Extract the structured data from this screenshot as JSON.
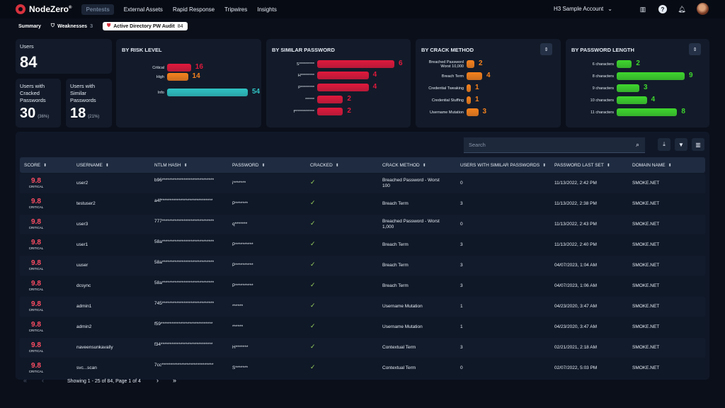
{
  "app": {
    "logo": "NodeZero",
    "logo_mark": "®",
    "nav": [
      {
        "label": "Pentests",
        "active": true
      },
      {
        "label": "External Assets"
      },
      {
        "label": "Rapid Response"
      },
      {
        "label": "Tripwires"
      },
      {
        "label": "Insights"
      }
    ],
    "account": "H3 Sample Account",
    "icons": [
      "map-icon",
      "help-icon",
      "bell-icon"
    ]
  },
  "subtabs": [
    {
      "label": "Summary",
      "count": "",
      "icon": ""
    },
    {
      "label": "Weaknesses",
      "count": "3",
      "icon": "shield-icon"
    },
    {
      "label": "Active Directory PW Audit",
      "count": "84",
      "icon": "ad-icon",
      "active": true
    }
  ],
  "stats": {
    "users": {
      "label": "Users",
      "value": "84"
    },
    "cracked": {
      "label": "Users with Cracked Passwords",
      "value": "30",
      "pct": "(36%)"
    },
    "similar": {
      "label": "Users with Similar Passwords",
      "value": "18",
      "pct": "(21%)"
    }
  },
  "chart_data": [
    {
      "type": "bar",
      "title": "BY RISK LEVEL",
      "categories": [
        "Critical",
        "High",
        "Info"
      ],
      "values": [
        16,
        14,
        54
      ],
      "colors": [
        "#e0193c",
        "#f7821d",
        "#2fc4c4"
      ],
      "xlim": [
        0,
        54
      ]
    },
    {
      "type": "bar",
      "title": "BY SIMILAR PASSWORD",
      "categories": [
        "S**********",
        "H*********",
        "P*********",
        "******",
        "f*************"
      ],
      "values": [
        6,
        4,
        4,
        2,
        2
      ],
      "colors": [
        "#e0193c",
        "#e0193c",
        "#e0193c",
        "#e0193c",
        "#e0193c"
      ],
      "xlim": [
        0,
        6
      ]
    },
    {
      "type": "bar",
      "title": "BY CRACK METHOD",
      "categories": [
        "Breached Password Worst 10,000",
        "Breach Term",
        "Credential Tweaking",
        "Credential Stuffing",
        "Username Mutation"
      ],
      "values": [
        2,
        4,
        1,
        1,
        3
      ],
      "colors": [
        "#f7821d",
        "#f7821d",
        "#f7821d",
        "#f7821d",
        "#f7821d"
      ],
      "xlim": [
        0,
        4
      ]
    },
    {
      "type": "bar",
      "title": "BY PASSWORD LENGTH",
      "categories": [
        "6 characters",
        "8 characters",
        "9 characters",
        "10 characters",
        "11 characters"
      ],
      "values": [
        2,
        9,
        3,
        4,
        8
      ],
      "colors": [
        "#3ed62d",
        "#3ed62d",
        "#3ed62d",
        "#3ed62d",
        "#3ed62d"
      ],
      "xlim": [
        0,
        9
      ]
    }
  ],
  "table": {
    "search_placeholder": "Search",
    "headers": [
      "SCORE",
      "USERNAME",
      "NTLM HASH",
      "PASSWORD",
      "CRACKED",
      "CRACK METHOD",
      "USERS WITH SIMILAR PASSWORDS",
      "PASSWORD LAST SET",
      "DOMAIN NAME"
    ],
    "rows": [
      {
        "score": "9.8",
        "level": "CRITICAL",
        "username": "user2",
        "hash": "b96*****************************",
        "password": "i*******",
        "cracked": "✓",
        "method": "Breached Password - Worst 100",
        "similar": "0",
        "last_set": "11/13/2022, 2:42 PM",
        "domain": "SMOKE.NET"
      },
      {
        "score": "9.8",
        "level": "CRITICAL",
        "username": "testuser2",
        "hash": "a4f*****************************",
        "password": "P*******",
        "cracked": "✓",
        "method": "Breach Term",
        "similar": "3",
        "last_set": "11/13/2022, 2:38 PM",
        "domain": "SMOKE.NET"
      },
      {
        "score": "9.8",
        "level": "CRITICAL",
        "username": "user3",
        "hash": "777*****************************",
        "password": "q*******",
        "cracked": "✓",
        "method": "Breached Password - Worst 1,000",
        "similar": "0",
        "last_set": "11/13/2022, 2:43 PM",
        "domain": "SMOKE.NET"
      },
      {
        "score": "9.8",
        "level": "CRITICAL",
        "username": "user1",
        "hash": "58a*****************************",
        "password": "P**********",
        "cracked": "✓",
        "method": "Breach Term",
        "similar": "3",
        "last_set": "11/13/2022, 2:40 PM",
        "domain": "SMOKE.NET"
      },
      {
        "score": "9.8",
        "level": "CRITICAL",
        "username": "uuser",
        "hash": "58a*****************************",
        "password": "P**********",
        "cracked": "✓",
        "method": "Breach Term",
        "similar": "3",
        "last_set": "04/07/2023, 1:04 AM",
        "domain": "SMOKE.NET"
      },
      {
        "score": "9.8",
        "level": "CRITICAL",
        "username": "dcsync",
        "hash": "58a*****************************",
        "password": "P**********",
        "cracked": "✓",
        "method": "Breach Term",
        "similar": "3",
        "last_set": "04/07/2023, 1:06 AM",
        "domain": "SMOKE.NET"
      },
      {
        "score": "9.8",
        "level": "CRITICAL",
        "username": "admin1",
        "hash": "745*****************************",
        "password": "******",
        "cracked": "✓",
        "method": "Username Mutation",
        "similar": "1",
        "last_set": "04/23/2020, 3:47 AM",
        "domain": "SMOKE.NET"
      },
      {
        "score": "9.8",
        "level": "CRITICAL",
        "username": "admin2",
        "hash": "f59*****************************",
        "password": "******",
        "cracked": "✓",
        "method": "Username Mutation",
        "similar": "1",
        "last_set": "04/23/2020, 3:47 AM",
        "domain": "SMOKE.NET"
      },
      {
        "score": "9.8",
        "level": "CRITICAL",
        "username": "naveensunkavally",
        "hash": "f34*****************************",
        "password": "H*******",
        "cracked": "✓",
        "method": "Contextual Term",
        "similar": "3",
        "last_set": "02/21/2021, 2:18 AM",
        "domain": "SMOKE.NET"
      },
      {
        "score": "9.8",
        "level": "CRITICAL",
        "username": "svc...scan",
        "hash": "7cc*****************************",
        "password": "S*******",
        "cracked": "✓",
        "method": "Contextual Term",
        "similar": "0",
        "last_set": "02/07/2022, 5:03 PM",
        "domain": "SMOKE.NET"
      }
    ],
    "pagination": "Showing 1 - 25 of 84, Page 1 of 4"
  }
}
